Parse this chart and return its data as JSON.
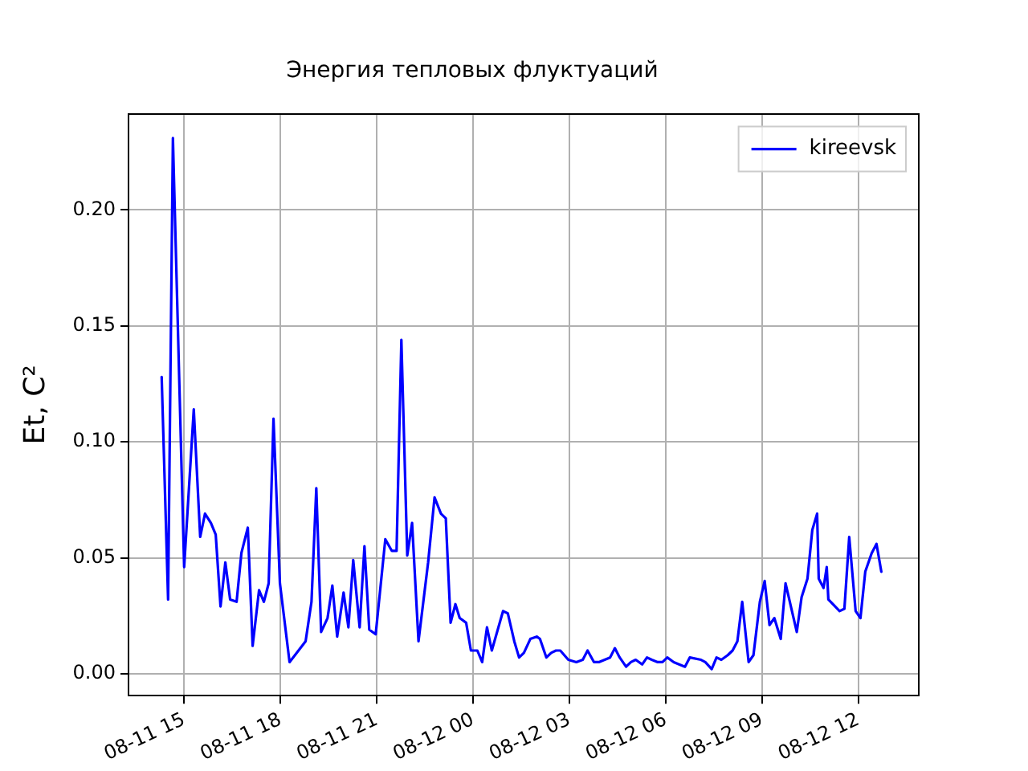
{
  "chart_data": {
    "type": "line",
    "title": "Энергия тепловых флуктуаций",
    "ylabel": "Et, C²",
    "x": [
      "--08-11T14:18",
      "--08-11T14:30",
      "--08-11T14:39",
      "--08-11T15:00",
      "--08-11T15:18",
      "--08-11T15:30",
      "--08-11T15:39",
      "--08-11T15:50",
      "--08-11T15:59",
      "--08-11T16:08",
      "--08-11T16:17",
      "--08-11T16:26",
      "--08-11T16:38",
      "--08-11T16:47",
      "--08-11T16:59",
      "--08-11T17:08",
      "--08-11T17:20",
      "--08-11T17:29",
      "--08-11T17:38",
      "--08-11T17:47",
      "--08-11T17:59",
      "--08-11T18:17",
      "--08-11T18:47",
      "--08-11T18:58",
      "--08-11T19:07",
      "--08-11T19:16",
      "--08-11T19:28",
      "--08-11T19:37",
      "--08-11T19:46",
      "--08-11T19:58",
      "--08-11T20:07",
      "--08-11T20:16",
      "--08-11T20:28",
      "--08-11T20:37",
      "--08-11T20:46",
      "--08-11T20:58",
      "--08-11T21:16",
      "--08-11T21:28",
      "--08-11T21:37",
      "--08-11T21:46",
      "--08-11T21:57",
      "--08-11T22:06",
      "--08-11T22:18",
      "--08-11T22:36",
      "--08-11T22:48",
      "--08-11T23:00",
      "--08-11T23:09",
      "--08-11T23:18",
      "--08-11T23:27",
      "--08-11T23:35",
      "--08-11T23:47",
      "--08-11T23:56",
      "--08-12T00:08",
      "--08-12T00:17",
      "--08-12T00:26",
      "--08-12T00:35",
      "--08-12T00:56",
      "--08-12T01:05",
      "--08-12T01:17",
      "--08-12T01:26",
      "--08-12T01:35",
      "--08-12T01:47",
      "--08-12T01:59",
      "--08-12T02:05",
      "--08-12T02:17",
      "--08-12T02:26",
      "--08-12T02:35",
      "--08-12T02:43",
      "--08-12T02:58",
      "--08-12T03:13",
      "--08-12T03:25",
      "--08-12T03:34",
      "--08-12T03:46",
      "--08-12T03:55",
      "--08-12T04:16",
      "--08-12T04:25",
      "--08-12T04:34",
      "--08-12T04:46",
      "--08-12T04:55",
      "--08-12T05:04",
      "--08-12T05:16",
      "--08-12T05:25",
      "--08-12T05:34",
      "--08-12T05:45",
      "--08-12T05:54",
      "--08-12T06:03",
      "--08-12T06:15",
      "--08-12T06:36",
      "--08-12T06:45",
      "--08-12T07:06",
      "--08-12T07:14",
      "--08-12T07:26",
      "--08-12T07:35",
      "--08-12T07:44",
      "--08-12T07:56",
      "--08-12T08:05",
      "--08-12T08:14",
      "--08-12T08:23",
      "--08-12T08:35",
      "--08-12T08:44",
      "--08-12T08:56",
      "--08-12T09:05",
      "--08-12T09:14",
      "--08-12T09:23",
      "--08-12T09:35",
      "--08-12T09:44",
      "--08-12T10:05",
      "--08-12T10:14",
      "--08-12T10:25",
      "--08-12T10:34",
      "--08-12T10:43",
      "--08-12T10:46",
      "--08-12T10:55",
      "--08-12T11:01",
      "--08-12T11:04",
      "--08-12T11:25",
      "--08-12T11:34",
      "--08-12T11:43",
      "--08-12T11:55",
      "--08-12T12:04",
      "--08-12T12:13",
      "--08-12T12:25",
      "--08-12T12:34",
      "--08-12T12:43"
    ],
    "series": [
      {
        "name": "kireevsk",
        "color": "#0000ff",
        "values": [
          0.128,
          0.032,
          0.231,
          0.046,
          0.114,
          0.059,
          0.069,
          0.065,
          0.06,
          0.029,
          0.048,
          0.032,
          0.031,
          0.052,
          0.063,
          0.012,
          0.036,
          0.031,
          0.039,
          0.11,
          0.039,
          0.005,
          0.014,
          0.031,
          0.08,
          0.018,
          0.024,
          0.038,
          0.016,
          0.035,
          0.02,
          0.049,
          0.02,
          0.055,
          0.019,
          0.017,
          0.058,
          0.053,
          0.053,
          0.144,
          0.051,
          0.065,
          0.014,
          0.048,
          0.076,
          0.069,
          0.067,
          0.022,
          0.03,
          0.024,
          0.022,
          0.01,
          0.01,
          0.005,
          0.02,
          0.01,
          0.027,
          0.026,
          0.014,
          0.007,
          0.009,
          0.015,
          0.016,
          0.015,
          0.007,
          0.009,
          0.01,
          0.01,
          0.006,
          0.005,
          0.006,
          0.01,
          0.005,
          0.005,
          0.007,
          0.011,
          0.007,
          0.003,
          0.005,
          0.006,
          0.004,
          0.007,
          0.006,
          0.005,
          0.005,
          0.007,
          0.005,
          0.003,
          0.007,
          0.006,
          0.005,
          0.002,
          0.007,
          0.006,
          0.008,
          0.01,
          0.014,
          0.031,
          0.005,
          0.008,
          0.031,
          0.04,
          0.021,
          0.024,
          0.015,
          0.039,
          0.018,
          0.033,
          0.041,
          0.062,
          0.069,
          0.041,
          0.037,
          0.046,
          0.032,
          0.027,
          0.028,
          0.059,
          0.027,
          0.024,
          0.044,
          0.052,
          0.056,
          0.044
        ]
      }
    ],
    "xlim": [
      "--08-11T13:16",
      "--08-12T13:53"
    ],
    "xticks": [
      {
        "value": "--08-11T15:00",
        "label": "08-11 15"
      },
      {
        "value": "--08-11T18:00",
        "label": "08-11 18"
      },
      {
        "value": "--08-11T21:00",
        "label": "08-11 21"
      },
      {
        "value": "--08-12T00:00",
        "label": "08-12 00"
      },
      {
        "value": "--08-12T03:00",
        "label": "08-12 03"
      },
      {
        "value": "--08-12T06:00",
        "label": "08-12 06"
      },
      {
        "value": "--08-12T09:00",
        "label": "08-12 09"
      },
      {
        "value": "--08-12T12:00",
        "label": "08-12 12"
      }
    ],
    "ylim": [
      -0.0095,
      0.2415
    ],
    "yticks": [
      {
        "value": 0,
        "label": "0.00"
      },
      {
        "value": 0.05,
        "label": "0.05"
      },
      {
        "value": 0.1,
        "label": "0.10"
      },
      {
        "value": 0.15,
        "label": "0.15"
      },
      {
        "value": 0.2,
        "label": "0.20"
      }
    ],
    "grid": true,
    "legend": "top right",
    "line_style": "solid",
    "marker": "none"
  }
}
